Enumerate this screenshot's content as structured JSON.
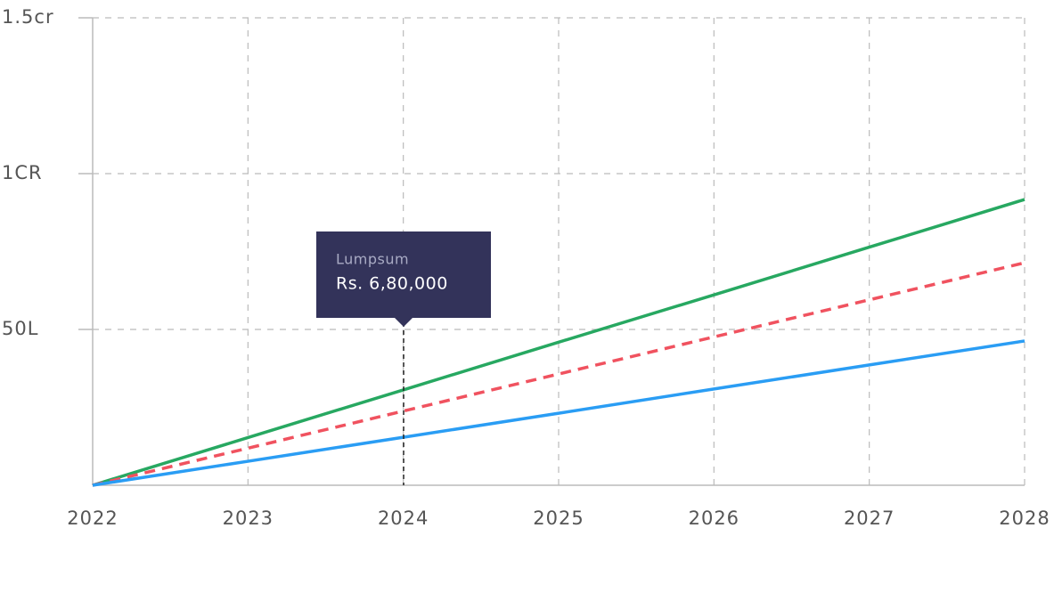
{
  "chart_data": {
    "type": "line",
    "categories": [
      "2022",
      "2023",
      "2024",
      "2025",
      "2026",
      "2027",
      "2028"
    ],
    "series": [
      {
        "color": "#27a861",
        "dashed": false,
        "values": [
          0,
          1530000,
          3060000,
          4590000,
          6110000,
          7640000,
          9170000
        ]
      },
      {
        "color": "#f0525f",
        "dashed": true,
        "values": [
          0,
          1190000,
          2380000,
          3570000,
          4760000,
          5950000,
          7140000
        ]
      },
      {
        "color": "#2a9df4",
        "dashed": false,
        "values": [
          0,
          770000,
          1540000,
          2310000,
          3090000,
          3860000,
          4630000
        ]
      }
    ],
    "ylim": [
      0,
      15000000
    ],
    "yticks": [
      {
        "value": 5000000,
        "label": "50L"
      },
      {
        "value": 10000000,
        "label": "1CR"
      },
      {
        "value": 15000000,
        "label": "1.5cr"
      }
    ],
    "grid": true,
    "tooltip": {
      "title": "Lumpsum",
      "text": "Rs. 6,80,000"
    }
  }
}
